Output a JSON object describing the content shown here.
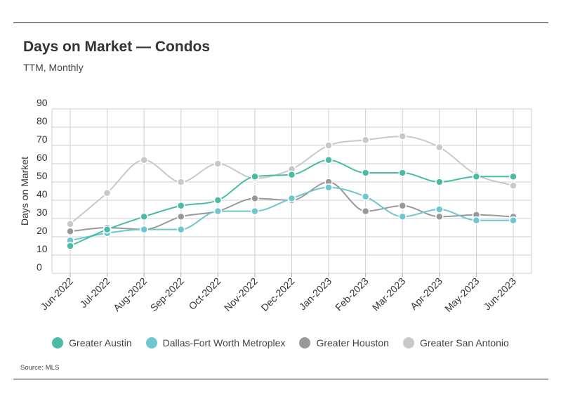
{
  "header": {
    "title": "Days on Market — Condos",
    "subtitle": "TTM, Monthly"
  },
  "source": {
    "label": "Source:",
    "value": "MLS"
  },
  "chart_data": {
    "type": "line",
    "title": "Days on Market — Condos",
    "subtitle": "TTM, Monthly",
    "xlabel": "",
    "ylabel": "Days on Market",
    "ylim": [
      0,
      90
    ],
    "yticks": [
      0,
      10,
      20,
      30,
      40,
      50,
      60,
      70,
      80,
      90
    ],
    "grid": true,
    "smooth": true,
    "legend_position": "bottom",
    "categories": [
      "Jun-2022",
      "Jul-2022",
      "Aug-2022",
      "Sep-2022",
      "Oct-2022",
      "Nov-2022",
      "Dec-2022",
      "Jan-2023",
      "Feb-2023",
      "Mar-2023",
      "Apr-2023",
      "May-2023",
      "Jun-2023"
    ],
    "series": [
      {
        "name": "Greater Austin",
        "color": "#4bbba5",
        "values": [
          15,
          24,
          31,
          37,
          40,
          53,
          54,
          62,
          55,
          55,
          50,
          53,
          53
        ]
      },
      {
        "name": "Dallas-Fort Worth Metroplex",
        "color": "#6ec6ce",
        "values": [
          18,
          22,
          24,
          24,
          34,
          34,
          41,
          47,
          42,
          31,
          35,
          29,
          29
        ]
      },
      {
        "name": "Greater Houston",
        "color": "#999999",
        "values": [
          23,
          25,
          24,
          31,
          34,
          41,
          40,
          50,
          34,
          37,
          31,
          32,
          31
        ]
      },
      {
        "name": "Greater San Antonio",
        "color": "#c8c8c8",
        "values": [
          27,
          44,
          62,
          50,
          60,
          52,
          57,
          70,
          73,
          75,
          69,
          54,
          48
        ]
      }
    ]
  }
}
